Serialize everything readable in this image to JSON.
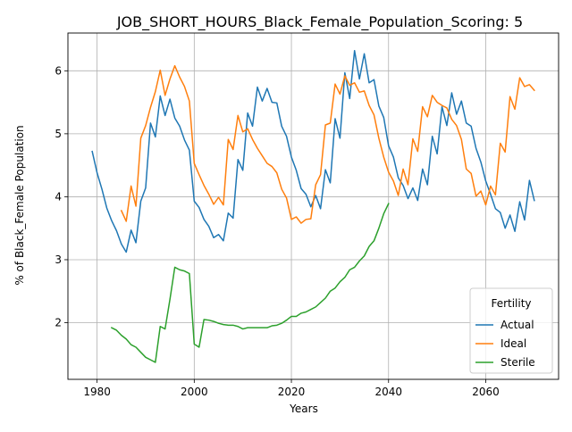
{
  "chart_data": {
    "type": "line",
    "title": "JOB_SHORT_HOURS_Black_Female_Population_Scoring: 5",
    "xlabel": "Years",
    "ylabel": "% of Black_Female Population",
    "xlim": [
      1974,
      2075
    ],
    "ylim": [
      1.1,
      6.6
    ],
    "xticks": [
      1980,
      2000,
      2020,
      2040,
      2060
    ],
    "yticks": [
      2,
      3,
      4,
      5,
      6
    ],
    "grid": true,
    "legend": {
      "title": "Fertility",
      "position": "lower-right"
    },
    "series": [
      {
        "name": "Actual",
        "color": "#1f77b4",
        "segments": [
          {
            "x": [
              1979,
              1980,
              1981,
              1982,
              1983,
              1984,
              1985,
              1986,
              1987,
              1988,
              1989,
              1990,
              1991,
              1992,
              1993,
              1994,
              1995,
              1996,
              1997,
              1998,
              1999,
              2000,
              2001,
              2002,
              2003,
              2004,
              2005,
              2006,
              2007,
              2008,
              2009,
              2010,
              2011,
              2012,
              2013,
              2014,
              2015,
              2016,
              2017,
              2018,
              2019,
              2020,
              2021,
              2022,
              2023,
              2024,
              2025,
              2026,
              2027,
              2028,
              2029,
              2030,
              2031,
              2032,
              2033,
              2034,
              2035,
              2036,
              2037,
              2038,
              2039,
              2040,
              2041,
              2042,
              2043,
              2044,
              2045,
              2046,
              2047,
              2048,
              2049,
              2050,
              2051,
              2052,
              2053,
              2054,
              2055,
              2056,
              2057,
              2058,
              2059,
              2060,
              2061,
              2062,
              2063,
              2064,
              2065,
              2066,
              2067,
              2068,
              2069,
              2070
            ],
            "y": [
              4.72,
              4.38,
              4.12,
              3.82,
              3.62,
              3.46,
              3.25,
              3.12,
              3.47,
              3.27,
              3.93,
              4.14,
              5.17,
              4.95,
              5.6,
              5.29,
              5.55,
              5.25,
              5.12,
              4.9,
              4.74,
              3.93,
              3.83,
              3.64,
              3.53,
              3.35,
              3.4,
              3.3,
              3.74,
              3.66,
              4.59,
              4.42,
              5.33,
              5.12,
              5.74,
              5.52,
              5.72,
              5.5,
              5.49,
              5.12,
              4.96,
              4.63,
              4.42,
              4.13,
              4.04,
              3.84,
              4.02,
              3.81,
              4.43,
              4.22,
              5.24,
              4.93,
              5.97,
              5.56,
              6.32,
              5.87,
              6.27,
              5.81,
              5.86,
              5.44,
              5.26,
              4.81,
              4.63,
              4.3,
              4.18,
              3.97,
              4.14,
              3.94,
              4.44,
              4.19,
              4.96,
              4.68,
              5.43,
              5.13,
              5.65,
              5.31,
              5.52,
              5.17,
              5.12,
              4.77,
              4.55,
              4.25,
              4.04,
              3.81,
              3.75,
              3.5,
              3.71,
              3.45,
              3.92,
              3.63,
              4.26,
              3.94
            ]
          }
        ]
      },
      {
        "name": "Ideal",
        "color": "#ff7f0e",
        "segments": [
          {
            "x": [
              1985,
              1986,
              1987,
              1988,
              1989,
              1990,
              1991,
              1992,
              1993,
              1994,
              1995,
              1996,
              1997,
              1998,
              1999,
              2000,
              2001,
              2002,
              2003,
              2004,
              2005,
              2006,
              2007,
              2008,
              2009,
              2010,
              2011,
              2012,
              2013,
              2014,
              2015,
              2016,
              2017,
              2018,
              2019,
              2020,
              2021,
              2022,
              2023,
              2024,
              2025,
              2026,
              2027,
              2028,
              2029,
              2030,
              2031,
              2032,
              2033,
              2034,
              2035,
              2036,
              2037,
              2038,
              2039,
              2040,
              2041,
              2042,
              2043,
              2044,
              2045,
              2046,
              2047,
              2048,
              2049,
              2050,
              2051,
              2052,
              2053,
              2054,
              2055,
              2056,
              2057,
              2058,
              2059,
              2060,
              2061,
              2062,
              2063,
              2064,
              2065,
              2066,
              2067,
              2068,
              2069,
              2070
            ],
            "y": [
              3.78,
              3.61,
              4.17,
              3.85,
              4.93,
              5.13,
              5.42,
              5.67,
              6.01,
              5.61,
              5.87,
              6.08,
              5.9,
              5.75,
              5.52,
              4.53,
              4.35,
              4.18,
              4.04,
              3.88,
              3.99,
              3.87,
              4.91,
              4.75,
              5.29,
              5.03,
              5.08,
              4.91,
              4.77,
              4.65,
              4.53,
              4.48,
              4.38,
              4.12,
              3.98,
              3.64,
              3.68,
              3.58,
              3.64,
              3.65,
              4.19,
              4.35,
              5.14,
              5.17,
              5.79,
              5.63,
              5.92,
              5.77,
              5.81,
              5.66,
              5.68,
              5.45,
              5.3,
              4.93,
              4.63,
              4.39,
              4.25,
              4.02,
              4.44,
              4.19,
              4.92,
              4.72,
              5.43,
              5.27,
              5.61,
              5.5,
              5.45,
              5.41,
              5.23,
              5.13,
              4.91,
              4.44,
              4.37,
              4.01,
              4.09,
              3.87,
              4.17,
              4.03,
              4.85,
              4.71,
              5.59,
              5.39,
              5.89,
              5.75,
              5.78,
              5.69
            ]
          }
        ]
      },
      {
        "name": "Sterile",
        "color": "#2ca02c",
        "segments": [
          {
            "x": [
              1983,
              1984,
              1985,
              1986,
              1987,
              1988,
              1989,
              1990,
              1991,
              1992,
              1993,
              1994,
              1995,
              1996,
              1997,
              1998,
              1999,
              2000,
              2001,
              2002,
              2003,
              2004,
              2005,
              2006,
              2007,
              2008,
              2009,
              2010,
              2011,
              2012,
              2013,
              2014,
              2015,
              2016,
              2017,
              2018,
              2019,
              2020,
              2021,
              2022,
              2023,
              2024,
              2025,
              2026,
              2027,
              2028,
              2029,
              2030,
              2031,
              2032,
              2033,
              2034,
              2035,
              2036,
              2037,
              2038,
              2039,
              2040
            ],
            "y": [
              1.92,
              1.88,
              1.8,
              1.74,
              1.65,
              1.61,
              1.53,
              1.45,
              1.41,
              1.37,
              1.94,
              1.9,
              2.37,
              2.88,
              2.84,
              2.82,
              2.78,
              1.66,
              1.61,
              2.05,
              2.04,
              2.02,
              1.99,
              1.97,
              1.96,
              1.96,
              1.94,
              1.9,
              1.92,
              1.92,
              1.92,
              1.92,
              1.92,
              1.95,
              1.96,
              1.99,
              2.04,
              2.1,
              2.1,
              2.15,
              2.17,
              2.21,
              2.25,
              2.32,
              2.39,
              2.5,
              2.55,
              2.65,
              2.72,
              2.84,
              2.88,
              2.98,
              3.06,
              3.21,
              3.3,
              3.5,
              3.73,
              3.89
            ]
          }
        ]
      }
    ]
  }
}
